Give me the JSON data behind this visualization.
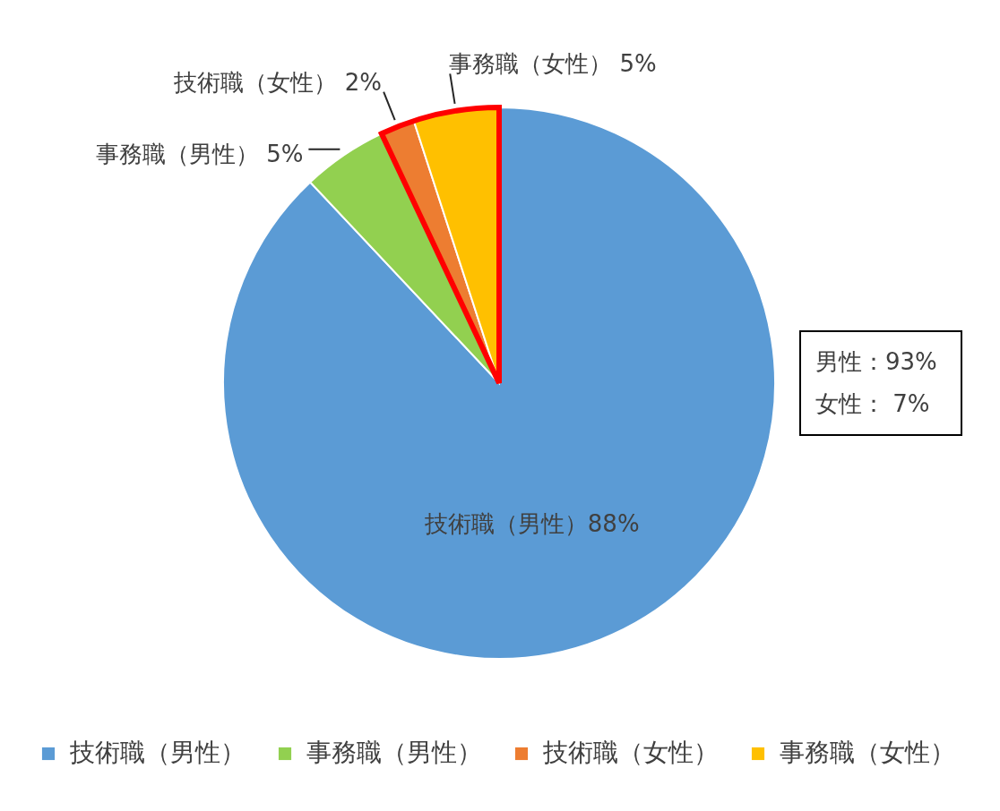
{
  "chart_data": {
    "type": "pie",
    "categories": [
      "技術職（男性）",
      "事務職（男性）",
      "技術職（女性）",
      "事務職（女性）"
    ],
    "values": [
      88,
      5,
      2,
      5
    ],
    "colors": [
      "#5b9bd5",
      "#92d050",
      "#ed7d31",
      "#ffc000"
    ],
    "value_labels": [
      "技術職（男性）88%",
      "事務職（男性） 5%",
      "技術職（女性） 2%",
      "事務職（女性） 5%"
    ],
    "annotations": [
      "男性：93%",
      "女性： 7%"
    ],
    "legend": "bottom"
  }
}
